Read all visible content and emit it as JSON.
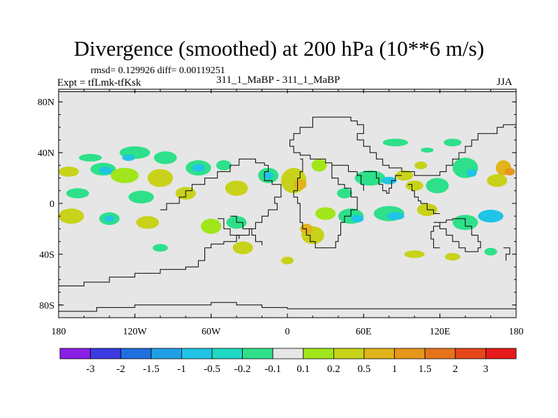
{
  "title": "Divergence (smoothed) at 200 hPa (10**6 m/s)",
  "stats": "rmsd= 0.129926 diff= 0.00119251",
  "expt": "Expt = tfLmk-tfKsk",
  "subtitle": "311_1_MaBP - 311_1_MaBP",
  "season": "JJA",
  "colors": {
    "background": "#e6e6e6",
    "coast": "#000000",
    "neg3": "#8a1fe6",
    "neg2": "#3a3ae0",
    "neg15": "#1f6fe0",
    "neg1": "#1fa0e6",
    "neg05": "#20c4e6",
    "neg02": "#20d9c4",
    "neg01": "#2ee08a",
    "zero": "#e6e6e6",
    "pos01": "#a0e61a",
    "pos02": "#c8d21a",
    "pos05": "#e0b41a",
    "pos1": "#e6961a",
    "pos15": "#e6731a",
    "pos2": "#e6461a",
    "pos3": "#e61a1a"
  },
  "chart_data": {
    "type": "heatmap",
    "title": "Divergence (smoothed) at 200 hPa (10**6 m/s)",
    "units": "10**6 m/s",
    "level": "200 hPa",
    "season": "JJA",
    "rmsd": 0.129926,
    "diff": 0.00119251,
    "xlim": [
      -180,
      180
    ],
    "ylim": [
      -90,
      90
    ],
    "x_ticks": [
      {
        "value": -180,
        "label": "180"
      },
      {
        "value": -120,
        "label": "120W"
      },
      {
        "value": -60,
        "label": "60W"
      },
      {
        "value": 0,
        "label": "0"
      },
      {
        "value": 60,
        "label": "60E"
      },
      {
        "value": 120,
        "label": "120E"
      },
      {
        "value": 180,
        "label": "180"
      }
    ],
    "y_ticks": [
      {
        "value": 80,
        "label": "80N"
      },
      {
        "value": 40,
        "label": "40N"
      },
      {
        "value": 0,
        "label": "0"
      },
      {
        "value": -40,
        "label": "40S"
      },
      {
        "value": -80,
        "label": "80S"
      }
    ],
    "colorbar": {
      "labels": [
        "-3",
        "-2",
        "-1.5",
        "-1",
        "-0.5",
        "-0.2",
        "-0.1",
        "0.1",
        "0.2",
        "0.5",
        "1",
        "1.5",
        "2",
        "3"
      ],
      "colors": [
        "#8a1fe6",
        "#3a3ae0",
        "#1f6fe0",
        "#1fa0e6",
        "#20c4e6",
        "#20d9c4",
        "#2ee08a",
        "#e6e6e6",
        "#a0e61a",
        "#c8d21a",
        "#e0b41a",
        "#e6961a",
        "#e6731a",
        "#e6461a",
        "#e61a1a"
      ]
    },
    "blobs": [
      {
        "lon": -155,
        "lat": 36,
        "rx": 9,
        "ry": 3,
        "color": "#2ee08a"
      },
      {
        "lon": -145,
        "lat": 27,
        "rx": 10,
        "ry": 5,
        "color": "#2ee08a"
      },
      {
        "lon": -143,
        "lat": 26,
        "rx": 5,
        "ry": 3,
        "color": "#20c4e6"
      },
      {
        "lon": -120,
        "lat": 40,
        "rx": 12,
        "ry": 5,
        "color": "#2ee08a"
      },
      {
        "lon": -125,
        "lat": 36,
        "rx": 5,
        "ry": 2.5,
        "color": "#20c4e6"
      },
      {
        "lon": -172,
        "lat": 25,
        "rx": 8,
        "ry": 4,
        "color": "#c8d21a"
      },
      {
        "lon": -128,
        "lat": 22,
        "rx": 11,
        "ry": 6,
        "color": "#a0e61a"
      },
      {
        "lon": -100,
        "lat": 20,
        "rx": 10,
        "ry": 7,
        "color": "#c8d21a"
      },
      {
        "lon": -96,
        "lat": 36,
        "rx": 9,
        "ry": 5,
        "color": "#2ee08a"
      },
      {
        "lon": -70,
        "lat": 28,
        "rx": 10,
        "ry": 6,
        "color": "#2ee08a"
      },
      {
        "lon": -70,
        "lat": 28,
        "rx": 5,
        "ry": 3,
        "color": "#20c4e6"
      },
      {
        "lon": -165,
        "lat": 8,
        "rx": 9,
        "ry": 4,
        "color": "#2ee08a"
      },
      {
        "lon": -115,
        "lat": 5,
        "rx": 10,
        "ry": 5,
        "color": "#2ee08a"
      },
      {
        "lon": -80,
        "lat": 8,
        "rx": 8,
        "ry": 5,
        "color": "#c8d21a"
      },
      {
        "lon": -40,
        "lat": 12,
        "rx": 9,
        "ry": 6,
        "color": "#c8d21a"
      },
      {
        "lon": -50,
        "lat": 30,
        "rx": 6,
        "ry": 4,
        "color": "#2ee08a"
      },
      {
        "lon": -15,
        "lat": 22,
        "rx": 8,
        "ry": 6,
        "color": "#2ee08a"
      },
      {
        "lon": -15,
        "lat": 22,
        "rx": 4,
        "ry": 3,
        "color": "#20c4e6"
      },
      {
        "lon": 5,
        "lat": 18,
        "rx": 10,
        "ry": 10,
        "color": "#c8d21a"
      },
      {
        "lon": 10,
        "lat": 15,
        "rx": 5,
        "ry": 4,
        "color": "#e0b41a"
      },
      {
        "lon": 25,
        "lat": 30,
        "rx": 6,
        "ry": 5,
        "color": "#a0e61a"
      },
      {
        "lon": 45,
        "lat": 8,
        "rx": 6,
        "ry": 4,
        "color": "#2ee08a"
      },
      {
        "lon": 65,
        "lat": 20,
        "rx": 12,
        "ry": 6,
        "color": "#2ee08a"
      },
      {
        "lon": 80,
        "lat": 18,
        "rx": 6,
        "ry": 3,
        "color": "#20c4e6"
      },
      {
        "lon": 92,
        "lat": 22,
        "rx": 7,
        "ry": 4,
        "color": "#c8d21a"
      },
      {
        "lon": 105,
        "lat": 30,
        "rx": 5,
        "ry": 3,
        "color": "#c8d21a"
      },
      {
        "lon": 100,
        "lat": 14,
        "rx": 7,
        "ry": 4,
        "color": "#c8d21a"
      },
      {
        "lon": 118,
        "lat": 14,
        "rx": 9,
        "ry": 6,
        "color": "#2ee08a"
      },
      {
        "lon": 140,
        "lat": 28,
        "rx": 10,
        "ry": 8,
        "color": "#2ee08a"
      },
      {
        "lon": 145,
        "lat": 24,
        "rx": 4,
        "ry": 3,
        "color": "#20c4e6"
      },
      {
        "lon": 165,
        "lat": 18,
        "rx": 8,
        "ry": 5,
        "color": "#c8d21a"
      },
      {
        "lon": 170,
        "lat": 28,
        "rx": 6,
        "ry": 6,
        "color": "#e0b41a"
      },
      {
        "lon": 175,
        "lat": 25,
        "rx": 4,
        "ry": 3,
        "color": "#e6961a"
      },
      {
        "lon": 85,
        "lat": 48,
        "rx": 10,
        "ry": 3,
        "color": "#2ee08a"
      },
      {
        "lon": 130,
        "lat": 48,
        "rx": 7,
        "ry": 3,
        "color": "#2ee08a"
      },
      {
        "lon": 110,
        "lat": 42,
        "rx": 5,
        "ry": 2,
        "color": "#2ee08a"
      },
      {
        "lon": -170,
        "lat": -10,
        "rx": 10,
        "ry": 6,
        "color": "#c8d21a"
      },
      {
        "lon": -140,
        "lat": -12,
        "rx": 8,
        "ry": 5,
        "color": "#2ee08a"
      },
      {
        "lon": -140,
        "lat": -12,
        "rx": 4,
        "ry": 2.5,
        "color": "#20c4e6"
      },
      {
        "lon": -110,
        "lat": -15,
        "rx": 9,
        "ry": 5,
        "color": "#c8d21a"
      },
      {
        "lon": -60,
        "lat": -18,
        "rx": 8,
        "ry": 6,
        "color": "#a0e61a"
      },
      {
        "lon": -40,
        "lat": -15,
        "rx": 8,
        "ry": 5,
        "color": "#2ee08a"
      },
      {
        "lon": -35,
        "lat": -35,
        "rx": 8,
        "ry": 5,
        "color": "#c8d21a"
      },
      {
        "lon": 20,
        "lat": -25,
        "rx": 9,
        "ry": 7,
        "color": "#c8d21a"
      },
      {
        "lon": 15,
        "lat": -20,
        "rx": 5,
        "ry": 4,
        "color": "#e0b41a"
      },
      {
        "lon": 30,
        "lat": -8,
        "rx": 8,
        "ry": 5,
        "color": "#a0e61a"
      },
      {
        "lon": 50,
        "lat": -10,
        "rx": 10,
        "ry": 6,
        "color": "#2ee08a"
      },
      {
        "lon": 55,
        "lat": -12,
        "rx": 5,
        "ry": 3,
        "color": "#20c4e6"
      },
      {
        "lon": 80,
        "lat": -8,
        "rx": 12,
        "ry": 6,
        "color": "#2ee08a"
      },
      {
        "lon": 85,
        "lat": -10,
        "rx": 7,
        "ry": 3,
        "color": "#20c4e6"
      },
      {
        "lon": 110,
        "lat": -5,
        "rx": 8,
        "ry": 5,
        "color": "#c8d21a"
      },
      {
        "lon": 140,
        "lat": -15,
        "rx": 10,
        "ry": 6,
        "color": "#2ee08a"
      },
      {
        "lon": 160,
        "lat": -10,
        "rx": 10,
        "ry": 5,
        "color": "#20c4e6"
      },
      {
        "lon": -100,
        "lat": -35,
        "rx": 6,
        "ry": 3,
        "color": "#2ee08a"
      },
      {
        "lon": 0,
        "lat": -45,
        "rx": 5,
        "ry": 3,
        "color": "#c8d21a"
      },
      {
        "lon": 100,
        "lat": -40,
        "rx": 8,
        "ry": 3,
        "color": "#c8d21a"
      },
      {
        "lon": 130,
        "lat": -42,
        "rx": 6,
        "ry": 3,
        "color": "#c8d21a"
      },
      {
        "lon": 160,
        "lat": -38,
        "rx": 5,
        "ry": 3,
        "color": "#2ee08a"
      }
    ]
  }
}
